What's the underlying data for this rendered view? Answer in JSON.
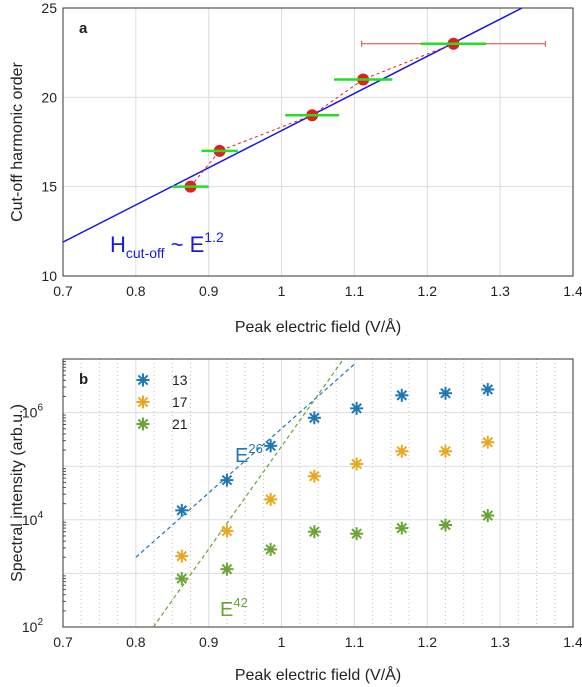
{
  "chart_data": [
    {
      "panel": "a",
      "type": "scatter",
      "xlabel": "Peak electric field (V/Å)",
      "ylabel": "Cut-off harmonic order",
      "xlim": [
        0.7,
        1.4
      ],
      "ylim": [
        10,
        25
      ],
      "xticks": [
        "0.7",
        "0.8",
        "0.9",
        "1",
        "1.1",
        "1.2",
        "1.3",
        "1.4"
      ],
      "yticks": [
        "10",
        "15",
        "20",
        "25"
      ],
      "grid": true,
      "points": [
        {
          "x": 0.875,
          "y": 15,
          "xerr": 0.025
        },
        {
          "x": 0.915,
          "y": 17,
          "xerr": 0.025
        },
        {
          "x": 1.042,
          "y": 19,
          "xerr": 0.037
        },
        {
          "x": 1.112,
          "y": 21,
          "xerr": 0.04
        },
        {
          "x": 1.236,
          "y": 23,
          "xerr": 0.045
        }
      ],
      "wide_error": {
        "x": 1.236,
        "y": 23,
        "xmin": 1.11,
        "xmax": 1.362
      },
      "fit": {
        "exponent": 1.2,
        "x": [
          0.7,
          1.33
        ],
        "y": [
          11.9,
          25
        ]
      },
      "annotation": {
        "main": "H",
        "sub": "cut-off",
        "mid": " ~ E",
        "sup": "1.2"
      },
      "colors": {
        "points": "#e02020",
        "errorbars": "#22e022",
        "fit": "#1a1adf",
        "dashed": "#e02020",
        "wide_error": "#e04040"
      }
    },
    {
      "panel": "b",
      "type": "scatter",
      "xlabel": "Peak electric field (V/Å)",
      "ylabel": "Spectral intensity (arb.u.)",
      "xlim": [
        0.7,
        1.4
      ],
      "ylim": [
        100,
        10000000
      ],
      "yscale": "log",
      "xticks": [
        "0.7",
        "0.8",
        "0.9",
        "1",
        "1.1",
        "1.2",
        "1.3",
        "1.4"
      ],
      "yticks": [
        {
          "base": "10",
          "exp": "2",
          "value": 100
        },
        {
          "base": "10",
          "exp": "4",
          "value": 10000
        },
        {
          "base": "10",
          "exp": "6",
          "value": 1000000
        }
      ],
      "grid": true,
      "legend_position": "top-left",
      "x": [
        0.863,
        0.925,
        0.985,
        1.045,
        1.103,
        1.165,
        1.225,
        1.283
      ],
      "series": [
        {
          "name": "13",
          "color": "#1f77b4",
          "values": [
            15000,
            55000,
            240000,
            800000,
            1200000,
            2100000,
            2300000,
            2700000
          ]
        },
        {
          "name": "17",
          "color": "#e8a820",
          "values": [
            2100,
            6200,
            24000,
            65000,
            110000,
            190000,
            190000,
            280000
          ]
        },
        {
          "name": "21",
          "color": "#6aa336",
          "values": [
            800,
            1200,
            2800,
            6000,
            5500,
            7000,
            8000,
            12000
          ]
        }
      ],
      "fit_lines": [
        {
          "label_base": "E",
          "label_exp": "26",
          "color": "#1f77b4",
          "x": [
            0.8,
            1.1
          ],
          "y": [
            2000,
            8000000
          ]
        },
        {
          "label_base": "E",
          "label_exp": "42",
          "color": "#6aa336",
          "x": [
            0.824,
            1.085
          ],
          "y": [
            100,
            10000000
          ]
        }
      ]
    }
  ]
}
